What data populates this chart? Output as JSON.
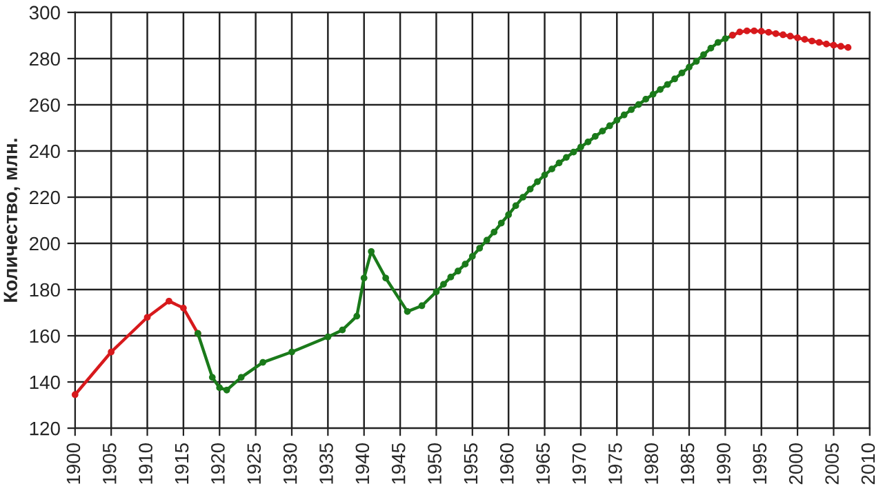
{
  "chart_data": {
    "type": "line",
    "ylabel": "Количество, млн.",
    "xlim": [
      1900,
      2010
    ],
    "ylim": [
      120,
      300
    ],
    "xticks": [
      1900,
      1905,
      1910,
      1915,
      1920,
      1925,
      1930,
      1935,
      1940,
      1945,
      1950,
      1955,
      1960,
      1965,
      1970,
      1975,
      1980,
      1985,
      1990,
      1995,
      2000,
      2005,
      2010
    ],
    "yticks": [
      120,
      140,
      160,
      180,
      200,
      220,
      240,
      260,
      280,
      300
    ],
    "grid": true,
    "legend": false,
    "marker": "circle",
    "line_style": "solid",
    "series": [
      {
        "color": "#d7191c",
        "x": [
          1900,
          1905,
          1910,
          1913,
          1915,
          1917
        ],
        "values": [
          134.5,
          153,
          168,
          175,
          172,
          161
        ]
      },
      {
        "color": "#1a7a1a",
        "x": [
          1917,
          1919,
          1920,
          1921,
          1923,
          1926,
          1930,
          1935,
          1937,
          1939,
          1940,
          1941,
          1943,
          1946,
          1948,
          1950,
          1951,
          1952,
          1953,
          1954,
          1955,
          1956,
          1957,
          1958,
          1959,
          1960,
          1961,
          1962,
          1963,
          1964,
          1965,
          1966,
          1967,
          1968,
          1969,
          1970,
          1971,
          1972,
          1973,
          1974,
          1975,
          1976,
          1977,
          1978,
          1979,
          1980,
          1981,
          1982,
          1983,
          1984,
          1985,
          1986,
          1987,
          1988,
          1989,
          1990,
          1991
        ],
        "values": [
          161,
          142,
          137.5,
          136.5,
          142,
          148.5,
          153,
          159.5,
          162.5,
          168.5,
          185,
          196.5,
          185,
          170.5,
          173,
          179,
          182.3,
          185.4,
          188,
          191,
          194.4,
          197.9,
          201.4,
          204.9,
          208.8,
          212.4,
          216.3,
          220,
          223.5,
          226.7,
          229.6,
          232.2,
          234.8,
          237.2,
          239.5,
          241.7,
          243.9,
          246.3,
          248.6,
          250.9,
          253.3,
          255.6,
          257.9,
          260.1,
          262.4,
          264.5,
          266.6,
          268.8,
          271.2,
          273.8,
          276.3,
          278.8,
          281.7,
          284.5,
          287,
          288.6,
          290.1
        ]
      },
      {
        "color": "#d7191c",
        "x": [
          1991,
          1992,
          1993,
          1994,
          1995,
          1996,
          1997,
          1998,
          1999,
          2000,
          2001,
          2002,
          2003,
          2004,
          2005,
          2006,
          2007
        ],
        "values": [
          290.1,
          291.5,
          292,
          292,
          291.8,
          291.4,
          290.8,
          290.3,
          289.7,
          289,
          288.3,
          287.6,
          287,
          286.3,
          285.8,
          285.3,
          284.8
        ]
      }
    ]
  }
}
